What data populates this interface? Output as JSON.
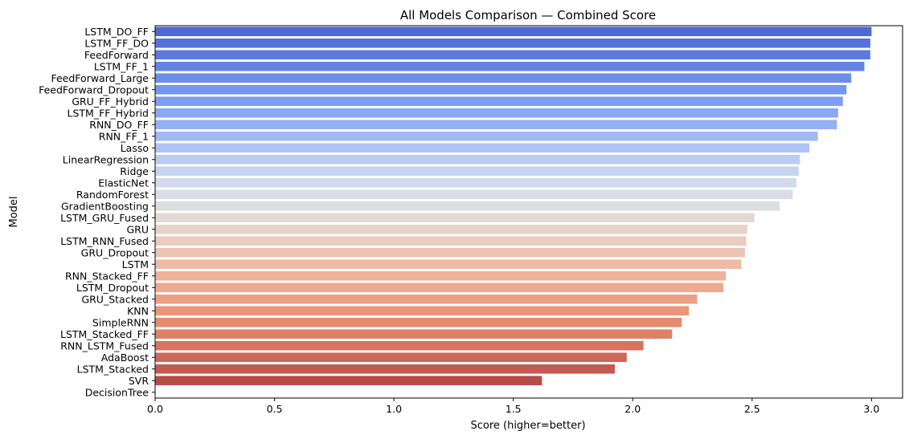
{
  "chart_data": {
    "type": "bar",
    "orientation": "horizontal",
    "title": "All Models Comparison — Combined Score",
    "xlabel": "Score (higher=better)",
    "ylabel": "Model",
    "xlim": [
      0,
      3.13
    ],
    "xticks": [
      0.0,
      0.5,
      1.0,
      1.5,
      2.0,
      2.5,
      3.0
    ],
    "xtick_labels": [
      "0.0",
      "0.5",
      "1.0",
      "1.5",
      "2.0",
      "2.5",
      "3.0"
    ],
    "grid": false,
    "palette": "coolwarm",
    "categories": [
      "LSTM_DO_FF",
      "LSTM_FF_DO",
      "FeedForward",
      "LSTM_FF_1",
      "FeedForward_Large",
      "FeedForward_Dropout",
      "GRU_FF_Hybrid",
      "LSTM_FF_Hybrid",
      "RNN_DO_FF",
      "RNN_FF_1",
      "Lasso",
      "LinearRegression",
      "Ridge",
      "ElasticNet",
      "RandomForest",
      "GradientBoosting",
      "LSTM_GRU_Fused",
      "GRU",
      "LSTM_RNN_Fused",
      "GRU_Dropout",
      "LSTM",
      "RNN_Stacked_FF",
      "LSTM_Dropout",
      "GRU_Stacked",
      "KNN",
      "SimpleRNN",
      "LSTM_Stacked_FF",
      "RNN_LSTM_Fused",
      "AdaBoost",
      "LSTM_Stacked",
      "SVR",
      "DecisionTree"
    ],
    "values": [
      3.0,
      2.995,
      2.995,
      2.97,
      2.915,
      2.895,
      2.88,
      2.86,
      2.855,
      2.775,
      2.74,
      2.7,
      2.695,
      2.685,
      2.67,
      2.615,
      2.51,
      2.48,
      2.475,
      2.47,
      2.455,
      2.39,
      2.38,
      2.27,
      2.235,
      2.205,
      2.165,
      2.045,
      1.975,
      1.925,
      1.62,
      0.0
    ],
    "colors": [
      "#4f68d8",
      "#5571dc",
      "#5b7be0",
      "#6384e6",
      "#6a8ceb",
      "#7495f0",
      "#7e9ef3",
      "#89a7f5",
      "#95b0f7",
      "#a0baf8",
      "#aec4f7",
      "#bccdf4",
      "#c7d4f0",
      "#d1dbeb",
      "#d8dde6",
      "#dddddd",
      "#e2d9d6",
      "#e7d2c9",
      "#ebcbbd",
      "#edc3b2",
      "#efbba6",
      "#f0b29a",
      "#f0a98e",
      "#eea084",
      "#ea9679",
      "#e58c6f",
      "#df8165",
      "#d7745d",
      "#ce6757",
      "#c45a51",
      "#b84a48",
      "#b13f40"
    ]
  }
}
